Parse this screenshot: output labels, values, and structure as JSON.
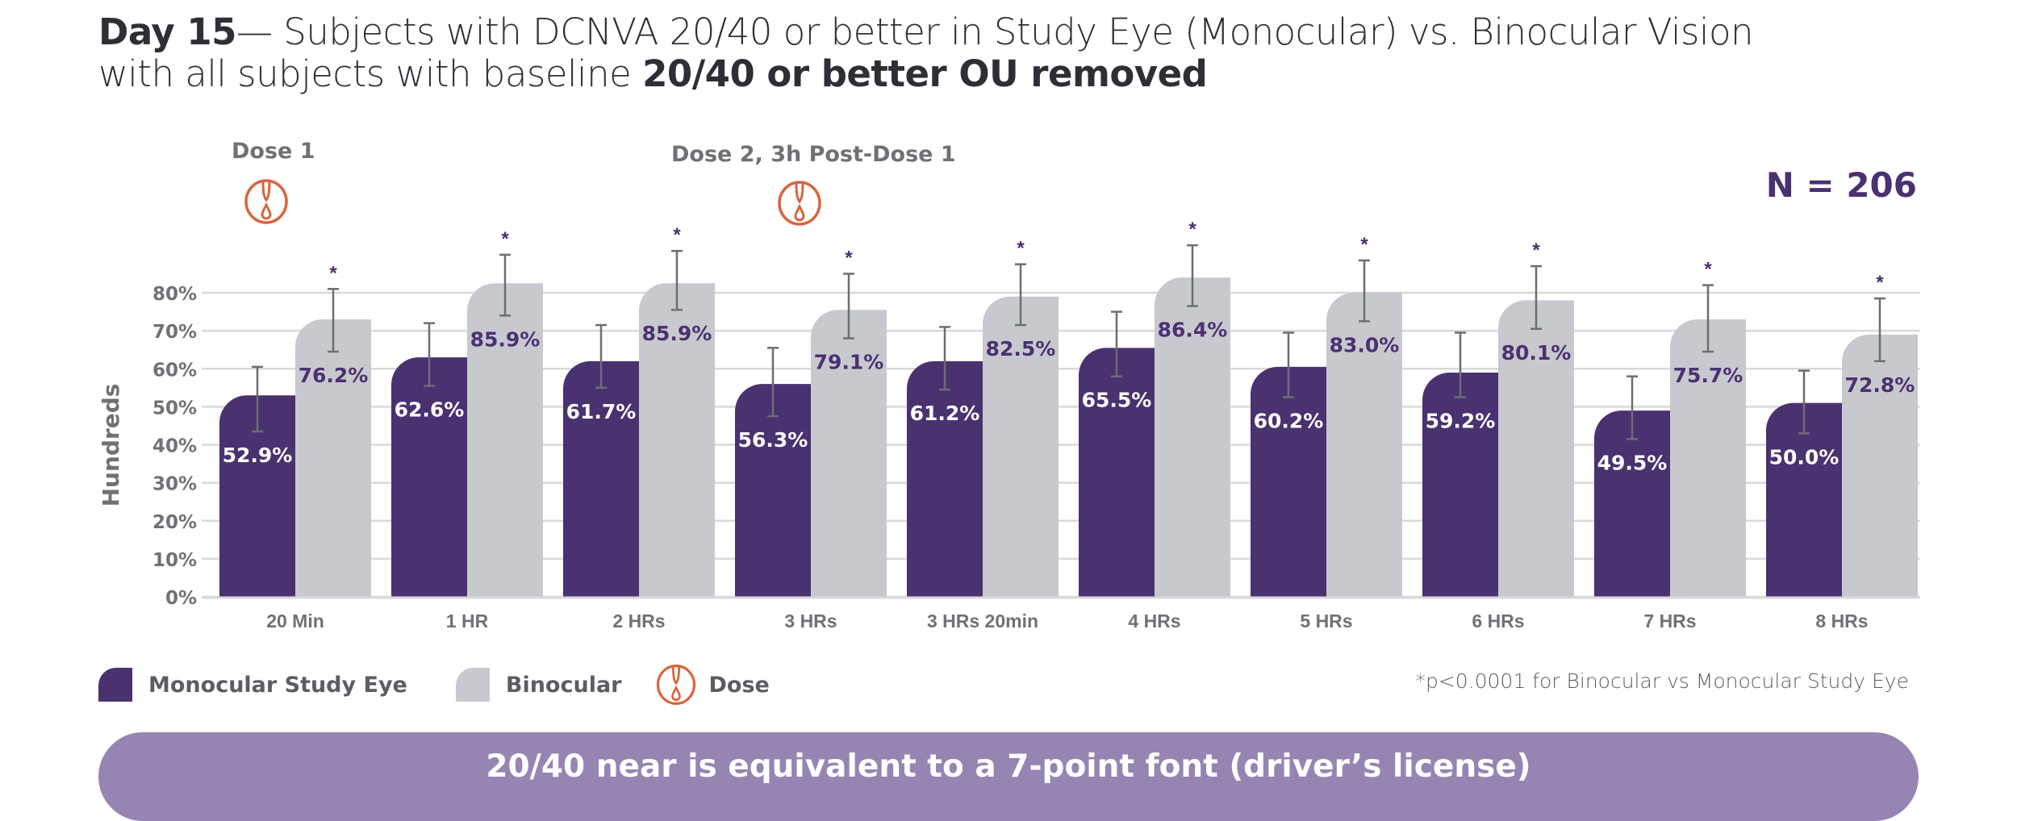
{
  "header": {
    "title_bold_1": "Day 15",
    "title_rest_1": "— Subjects with DCNVA 20/40 or better in Study Eye (Monocular) vs. Binocular Vision",
    "title_rest_2": "with all subjects with baseline ",
    "title_bold_2": "20/40 or better OU removed"
  },
  "annotations": {
    "dose1_label": "Dose 1",
    "dose2_label": "Dose 2, 3h Post-Dose 1",
    "n_label": "N = 206",
    "significance_marker": "*"
  },
  "legend": {
    "items": [
      {
        "label": "Monocular Study Eye",
        "icon": "monocular-swatch",
        "color": "#4a3170"
      },
      {
        "label": "Binocular",
        "icon": "binocular-swatch",
        "color": "#c8c9ce"
      },
      {
        "label": "Dose",
        "icon": "eye-drop-icon",
        "color": "#d9643d"
      }
    ],
    "footnote": "*p<0.0001 for Binocular vs Monocular Study Eye"
  },
  "banner": {
    "text": "20/40 near is equivalent to a 7-point font (driver’s license)"
  },
  "colors": {
    "monocular": "#4a3170",
    "binocular": "#c8c9ce",
    "dose": "#d9643d",
    "grid": "#d9d9dc",
    "axis_text": "#6f7175",
    "error_bar": "#6b6e73",
    "banner": "#9685b2"
  },
  "chart_data": {
    "type": "bar",
    "title": "Day 15 — Subjects with DCNVA 20/40 or better in Study Eye (Monocular) vs. Binocular Vision with all subjects with baseline 20/40 or better OU removed",
    "xlabel": "",
    "ylabel": "Hundreds",
    "ylim": [
      0,
      80
    ],
    "yticks": [
      "0%",
      "10%",
      "20%",
      "30%",
      "40%",
      "50%",
      "60%",
      "70%",
      "80%"
    ],
    "grid": true,
    "legend_position": "bottom-left",
    "categories": [
      "20 Min",
      "1 HR",
      "2 HRs",
      "3 HRs",
      "3 HRs 20min",
      "4 HRs",
      "5 HRs",
      "6 HRs",
      "7 HRs",
      "8 HRs"
    ],
    "dose_markers": [
      {
        "category": "20 Min",
        "label": "Dose 1"
      },
      {
        "category": "3 HRs",
        "label": "Dose 2, 3h Post-Dose 1"
      }
    ],
    "series": [
      {
        "name": "Monocular Study Eye",
        "labels": [
          "52.9%",
          "62.6%",
          "61.7%",
          "56.3%",
          "61.2%",
          "65.5%",
          "60.2%",
          "59.2%",
          "49.5%",
          "50.0%"
        ],
        "values": [
          52.9,
          62.6,
          61.7,
          56.3,
          61.2,
          65.5,
          60.2,
          59.2,
          49.5,
          50.0
        ],
        "drawn_values": [
          53,
          63,
          62,
          56,
          62,
          65.5,
          60.5,
          59,
          49,
          51
        ],
        "error_low": [
          43.5,
          55.5,
          55,
          47.5,
          54.5,
          58,
          52.5,
          52.5,
          41.5,
          43
        ],
        "error_high": [
          60.5,
          72,
          71.5,
          65.5,
          71,
          75,
          69.5,
          69.5,
          58,
          59.5
        ],
        "significant": [
          false,
          false,
          false,
          false,
          false,
          false,
          false,
          false,
          false,
          false
        ]
      },
      {
        "name": "Binocular",
        "labels": [
          "76.2%",
          "85.9%",
          "85.9%",
          "79.1%",
          "82.5%",
          "86.4%",
          "83.0%",
          "80.1%",
          "75.7%",
          "72.8%"
        ],
        "values": [
          76.2,
          85.9,
          85.9,
          79.1,
          82.5,
          86.4,
          83.0,
          80.1,
          75.7,
          72.8
        ],
        "drawn_values": [
          73,
          82.5,
          82.5,
          75.5,
          79,
          84,
          80,
          78,
          73,
          69
        ],
        "error_low": [
          64.5,
          74,
          75.5,
          68,
          71.5,
          76.5,
          72.5,
          70.5,
          64.5,
          62
        ],
        "error_high": [
          81,
          90,
          91,
          85,
          87.5,
          92.5,
          88.5,
          87,
          82,
          78.5
        ],
        "significant": [
          true,
          true,
          true,
          true,
          true,
          true,
          true,
          true,
          true,
          true
        ]
      }
    ]
  }
}
